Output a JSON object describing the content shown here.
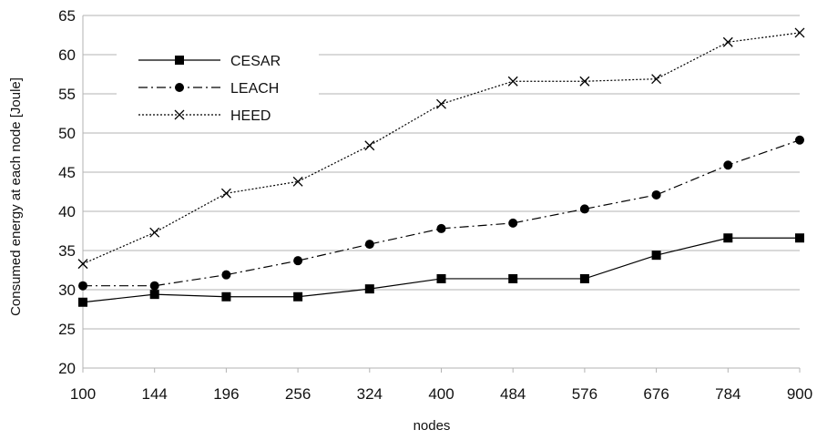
{
  "chart_data": {
    "type": "line",
    "title": "",
    "xlabel": "nodes",
    "ylabel": "Consumed energy at each node [Joule]",
    "categories": [
      "100",
      "144",
      "196",
      "256",
      "324",
      "400",
      "484",
      "576",
      "676",
      "784",
      "900"
    ],
    "ylim": [
      20,
      65
    ],
    "yticks": [
      20,
      25,
      30,
      35,
      40,
      45,
      50,
      55,
      60,
      65
    ],
    "grid": "horizontal",
    "legend": "top-left",
    "series": [
      {
        "name": "CESAR",
        "marker": "square",
        "line_style": "solid",
        "color": "#000000",
        "values": [
          28.4,
          29.4,
          29.1,
          29.1,
          30.1,
          31.4,
          31.4,
          31.4,
          34.4,
          36.6,
          36.6
        ]
      },
      {
        "name": "LEACH",
        "marker": "circle",
        "line_style": "dash-dot",
        "color": "#000000",
        "values": [
          30.5,
          30.5,
          31.9,
          33.7,
          35.8,
          37.8,
          38.5,
          40.3,
          42.1,
          45.9,
          49.1
        ]
      },
      {
        "name": "HEED",
        "marker": "x",
        "line_style": "dotted",
        "color": "#000000",
        "values": [
          33.3,
          37.3,
          42.3,
          43.8,
          48.4,
          53.7,
          56.6,
          56.6,
          56.9,
          61.6,
          62.8
        ]
      }
    ]
  }
}
